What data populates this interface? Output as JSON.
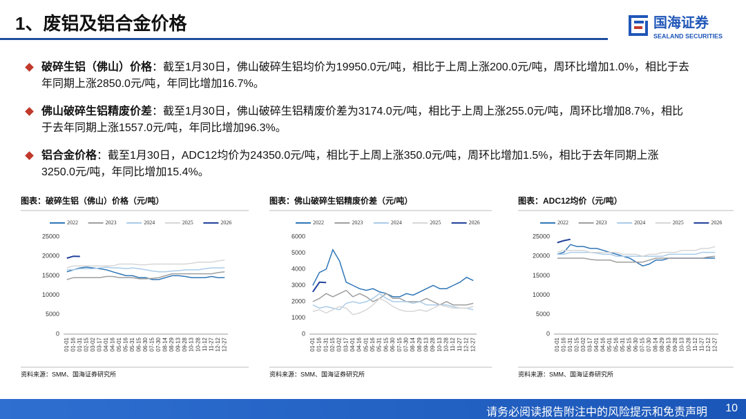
{
  "header": {
    "title": "1、废铝及铝合金价格",
    "logo_cn": "国海证券",
    "logo_en": "SEALAND SECURITIES"
  },
  "bullets": [
    {
      "label": "破碎生铝（佛山）价格",
      "text": "：截至1月30日，佛山破碎生铝均价为19950.0元/吨，相比于上周上涨200.0元/吨，周环比增加1.0%，相比于去年同期上涨2850.0元/吨，年同比增加16.7%。"
    },
    {
      "label": "佛山破碎生铝精废价差",
      "text": "：截至1月30日，佛山破碎生铝精废价差为3174.0元/吨，相比于上周上涨255.0元/吨，周环比增加8.7%，相比于去年同期上涨1557.0元/吨，年同比增加96.3%。"
    },
    {
      "label": "铝合金价格",
      "text": "：截至1月30日，ADC12均价为24350.0元/吨，相比于上周上涨350.0元/吨，周环比增加1.5%，相比于去年同期上涨3250.0元/吨，年同比增加15.4%。"
    }
  ],
  "chart_data": [
    {
      "type": "line",
      "title": "图表：破碎生铝（佛山）价格（元/吨）",
      "source": "资料来源：SMM、国海证券研究所",
      "categories": [
        "01-01",
        "01-16",
        "01-31",
        "02-15",
        "03-02",
        "03-17",
        "04-01",
        "04-16",
        "05-01",
        "05-16",
        "05-31",
        "06-15",
        "06-30",
        "07-15",
        "07-30",
        "08-14",
        "08-29",
        "09-13",
        "09-28",
        "10-13",
        "10-28",
        "11-12",
        "11-27",
        "12-12",
        "12-27"
      ],
      "ylim": [
        0,
        25000
      ],
      "yticks": [
        0,
        5000,
        10000,
        15000,
        20000,
        25000
      ],
      "series": [
        {
          "name": "2022",
          "color": "#2e75b6",
          "values": [
            16000,
            16500,
            17000,
            17200,
            17000,
            16800,
            16500,
            16000,
            15500,
            15000,
            15000,
            14500,
            14500,
            14000,
            14000,
            14500,
            15000,
            15000,
            14800,
            14500,
            14500,
            14500,
            14800,
            14500,
            14500
          ]
        },
        {
          "name": "2023",
          "color": "#9e9e9e",
          "values": [
            14000,
            14500,
            14500,
            14500,
            14500,
            14500,
            14800,
            14800,
            14500,
            14500,
            14500,
            14200,
            14200,
            14300,
            14500,
            15000,
            15500,
            15500,
            15500,
            15500,
            15500,
            15500,
            15500,
            15800,
            16000
          ]
        },
        {
          "name": "2024",
          "color": "#a9cbe8",
          "values": [
            16500,
            16500,
            16800,
            16800,
            16800,
            17000,
            17200,
            17000,
            17000,
            16800,
            17000,
            16800,
            16500,
            16200,
            16000,
            16000,
            16200,
            16300,
            16500,
            16500,
            16500,
            16800,
            17000,
            17000,
            17000
          ]
        },
        {
          "name": "2025",
          "color": "#d6d6d6",
          "values": [
            17000,
            17500,
            17500,
            17500,
            17500,
            17500,
            17500,
            17500,
            18000,
            18000,
            18000,
            17800,
            17800,
            18000,
            18000,
            18000,
            18000,
            18000,
            18000,
            18200,
            18500,
            18500,
            18500,
            18800,
            19000
          ]
        },
        {
          "name": "2026",
          "color": "#1f3f99",
          "values": [
            19500,
            20000,
            19950,
            null,
            null,
            null,
            null,
            null,
            null,
            null,
            null,
            null,
            null,
            null,
            null,
            null,
            null,
            null,
            null,
            null,
            null,
            null,
            null,
            null,
            null
          ]
        }
      ]
    },
    {
      "type": "line",
      "title": "图表：佛山破碎生铝精废价差（元/吨）",
      "source": "资料来源：SMM、国海证券研究所",
      "categories": [
        "01-01",
        "01-16",
        "01-31",
        "02-15",
        "03-02",
        "03-17",
        "04-01",
        "04-16",
        "05-01",
        "05-16",
        "05-31",
        "06-15",
        "06-30",
        "07-15",
        "07-30",
        "08-14",
        "08-29",
        "09-13",
        "09-28",
        "10-13",
        "10-28",
        "11-12",
        "11-27",
        "12-12",
        "12-27"
      ],
      "ylim": [
        0,
        6000
      ],
      "yticks": [
        0,
        1000,
        2000,
        3000,
        4000,
        5000,
        6000
      ],
      "series": [
        {
          "name": "2022",
          "color": "#2e75b6",
          "values": [
            3000,
            3800,
            4000,
            5200,
            4500,
            3200,
            3000,
            2800,
            2700,
            2800,
            2600,
            2500,
            2300,
            2300,
            2500,
            2400,
            2600,
            2800,
            3000,
            2800,
            2800,
            3000,
            3200,
            3500,
            3300
          ]
        },
        {
          "name": "2023",
          "color": "#9e9e9e",
          "values": [
            2000,
            2200,
            2500,
            2300,
            2500,
            2700,
            2300,
            2500,
            2300,
            2000,
            2200,
            2500,
            2200,
            2200,
            2000,
            2000,
            2000,
            2200,
            2000,
            1800,
            2000,
            1800,
            1800,
            1800,
            1900
          ]
        },
        {
          "name": "2024",
          "color": "#a9cbe8",
          "values": [
            1800,
            1600,
            1700,
            1600,
            1500,
            1900,
            2000,
            1900,
            2000,
            2200,
            2500,
            2200,
            2000,
            2000,
            2000,
            1900,
            2000,
            1800,
            1800,
            1800,
            1800,
            1700,
            1600,
            1600,
            1500
          ]
        },
        {
          "name": "2025",
          "color": "#d6d6d6",
          "values": [
            1400,
            1500,
            1300,
            1500,
            1700,
            1600,
            1200,
            1300,
            1500,
            1800,
            2200,
            2000,
            1700,
            1500,
            1400,
            1400,
            1500,
            1400,
            1600,
            1800,
            1700,
            1600,
            1600,
            1600,
            1700
          ]
        },
        {
          "name": "2026",
          "color": "#1f3f99",
          "values": [
            2600,
            3200,
            3174,
            null,
            null,
            null,
            null,
            null,
            null,
            null,
            null,
            null,
            null,
            null,
            null,
            null,
            null,
            null,
            null,
            null,
            null,
            null,
            null,
            null,
            null
          ]
        }
      ]
    },
    {
      "type": "line",
      "title": "图表：ADC12均价（元/吨）",
      "source": "资料来源：SMM、国海证券研究所",
      "categories": [
        "01-01",
        "01-16",
        "01-31",
        "02-15",
        "03-02",
        "03-17",
        "04-01",
        "04-16",
        "05-01",
        "05-16",
        "05-31",
        "06-15",
        "06-30",
        "07-15",
        "07-30",
        "08-14",
        "08-29",
        "09-13",
        "09-28",
        "10-13",
        "10-28",
        "11-12",
        "11-27",
        "12-12",
        "12-27"
      ],
      "ylim": [
        0,
        25000
      ],
      "yticks": [
        0,
        5000,
        10000,
        15000,
        20000,
        25000
      ],
      "series": [
        {
          "name": "2022",
          "color": "#2e75b6",
          "values": [
            20500,
            21000,
            23000,
            22500,
            22500,
            22000,
            22000,
            21500,
            21000,
            20500,
            20000,
            19500,
            18500,
            17500,
            18000,
            19000,
            19000,
            19500,
            19500,
            19500,
            19500,
            19500,
            19500,
            19500,
            19500
          ]
        },
        {
          "name": "2023",
          "color": "#9e9e9e",
          "values": [
            19500,
            19500,
            19500,
            19500,
            19500,
            19200,
            19000,
            19000,
            19000,
            18500,
            18500,
            18500,
            18500,
            18500,
            19000,
            19500,
            19500,
            19500,
            19500,
            19500,
            19500,
            19500,
            19500,
            19800,
            20000
          ]
        },
        {
          "name": "2024",
          "color": "#a9cbe8",
          "values": [
            20500,
            20500,
            21000,
            21000,
            21000,
            21000,
            20800,
            20500,
            20500,
            20000,
            20000,
            20000,
            20000,
            20000,
            20000,
            20000,
            20000,
            20500,
            20500,
            20500,
            20500,
            20500,
            21000,
            21000,
            21000
          ]
        },
        {
          "name": "2025",
          "color": "#d6d6d6",
          "values": [
            21000,
            21500,
            21500,
            21500,
            21500,
            21000,
            21000,
            21000,
            21000,
            21000,
            20500,
            20500,
            20500,
            20000,
            20500,
            20500,
            21000,
            21000,
            21000,
            21500,
            21500,
            21500,
            22000,
            22000,
            22500
          ]
        },
        {
          "name": "2026",
          "color": "#1f3f99",
          "values": [
            23500,
            24000,
            24350,
            null,
            null,
            null,
            null,
            null,
            null,
            null,
            null,
            null,
            null,
            null,
            null,
            null,
            null,
            null,
            null,
            null,
            null,
            null,
            null,
            null,
            null
          ]
        }
      ]
    }
  ],
  "footer": {
    "disclaimer": "请务必阅读报告附注中的风险提示和免责声明",
    "page": "10"
  }
}
